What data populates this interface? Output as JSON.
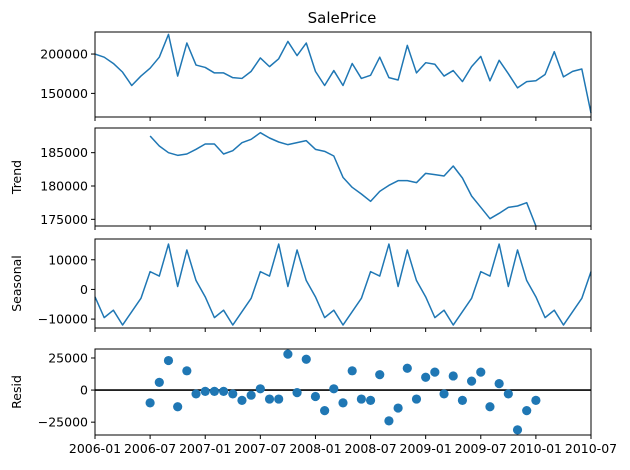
{
  "title": "SalePrice",
  "line_color": "#1f77b4",
  "zero_line_color": "#000000",
  "x_ticks": [
    "2006-01",
    "2006-07",
    "2007-01",
    "2007-07",
    "2008-01",
    "2008-07",
    "2009-01",
    "2009-07",
    "2010-01",
    "2010-07"
  ],
  "chart_data": [
    {
      "type": "line",
      "title": "SalePrice",
      "ylabel": "",
      "x_start": "2006-01",
      "x_end": "2010-07",
      "ylim": [
        120000,
        228000
      ],
      "yticks": [
        150000,
        200000
      ],
      "ytick_labels": [
        "150000",
        "200000"
      ],
      "series": [
        {
          "x": [
            "2006-01",
            "2006-02",
            "2006-03",
            "2006-04",
            "2006-05",
            "2006-06",
            "2006-07",
            "2006-08",
            "2006-09",
            "2006-10",
            "2006-11",
            "2006-12",
            "2007-01",
            "2007-02",
            "2007-03",
            "2007-04",
            "2007-05",
            "2007-06",
            "2007-07",
            "2007-08",
            "2007-09",
            "2007-10",
            "2007-11",
            "2007-12",
            "2008-01",
            "2008-02",
            "2008-03",
            "2008-04",
            "2008-05",
            "2008-06",
            "2008-07",
            "2008-08",
            "2008-09",
            "2008-10",
            "2008-11",
            "2008-12",
            "2009-01",
            "2009-02",
            "2009-03",
            "2009-04",
            "2009-05",
            "2009-06",
            "2009-07",
            "2009-08",
            "2009-09",
            "2009-10",
            "2009-11",
            "2009-12",
            "2010-01",
            "2010-02",
            "2010-03",
            "2010-04",
            "2010-05",
            "2010-06",
            "2010-07"
          ],
          "values": [
            200000,
            196000,
            188000,
            177000,
            160000,
            172000,
            182000,
            196000,
            225000,
            172000,
            214000,
            186000,
            183000,
            176000,
            176000,
            170000,
            169000,
            178000,
            195000,
            184000,
            194000,
            216000,
            198000,
            214000,
            178000,
            160000,
            179000,
            160000,
            188000,
            169000,
            173000,
            196000,
            170000,
            167000,
            211000,
            176000,
            189000,
            187000,
            172000,
            179000,
            165000,
            184000,
            197000,
            166000,
            192000,
            175000,
            157000,
            165000,
            166000,
            174000,
            203000,
            171000,
            178000,
            181000,
            125000
          ]
        }
      ]
    },
    {
      "type": "line",
      "title": "",
      "ylabel": "Trend",
      "x_start": "2006-01",
      "x_end": "2010-07",
      "ylim": [
        174000,
        188700
      ],
      "yticks": [
        175000,
        180000,
        185000
      ],
      "ytick_labels": [
        "175000",
        "180000",
        "185000"
      ],
      "series": [
        {
          "x": [
            "2006-07",
            "2006-08",
            "2006-09",
            "2006-10",
            "2006-11",
            "2006-12",
            "2007-01",
            "2007-02",
            "2007-03",
            "2007-04",
            "2007-05",
            "2007-06",
            "2007-07",
            "2007-08",
            "2007-09",
            "2007-10",
            "2007-11",
            "2007-12",
            "2008-01",
            "2008-02",
            "2008-03",
            "2008-04",
            "2008-05",
            "2008-06",
            "2008-07",
            "2008-08",
            "2008-09",
            "2008-10",
            "2008-11",
            "2008-12",
            "2009-01",
            "2009-02",
            "2009-03",
            "2009-04",
            "2009-05",
            "2009-06",
            "2009-07",
            "2009-08",
            "2009-09",
            "2009-10",
            "2009-11",
            "2009-12",
            "2010-01"
          ],
          "values": [
            187500,
            186000,
            185000,
            184600,
            184800,
            185500,
            186300,
            186300,
            184800,
            185300,
            186500,
            187000,
            188000,
            187200,
            186600,
            186200,
            186500,
            186800,
            185500,
            185200,
            184500,
            181300,
            179800,
            178800,
            177700,
            179200,
            180100,
            180800,
            180800,
            180500,
            181900,
            181700,
            181500,
            183000,
            181200,
            178500,
            176800,
            175100,
            175900,
            176800,
            177000,
            177500,
            174000
          ]
        }
      ]
    },
    {
      "type": "line",
      "title": "",
      "ylabel": "Seasonal",
      "x_start": "2006-01",
      "x_end": "2010-07",
      "ylim": [
        -13000,
        17000
      ],
      "yticks": [
        -10000,
        0,
        10000
      ],
      "ytick_labels": [
        "−10000",
        "0",
        "10000"
      ],
      "series": [
        {
          "x": [
            "2006-01",
            "2006-02",
            "2006-03",
            "2006-04",
            "2006-05",
            "2006-06",
            "2006-07",
            "2006-08",
            "2006-09",
            "2006-10",
            "2006-11",
            "2006-12",
            "2007-01",
            "2007-02",
            "2007-03",
            "2007-04",
            "2007-05",
            "2007-06",
            "2007-07",
            "2007-08",
            "2007-09",
            "2007-10",
            "2007-11",
            "2007-12",
            "2008-01",
            "2008-02",
            "2008-03",
            "2008-04",
            "2008-05",
            "2008-06",
            "2008-07",
            "2008-08",
            "2008-09",
            "2008-10",
            "2008-11",
            "2008-12",
            "2009-01",
            "2009-02",
            "2009-03",
            "2009-04",
            "2009-05",
            "2009-06",
            "2009-07",
            "2009-08",
            "2009-09",
            "2009-10",
            "2009-11",
            "2009-12",
            "2010-01",
            "2010-02",
            "2010-03",
            "2010-04",
            "2010-05",
            "2010-06",
            "2010-07"
          ],
          "values": [
            -2500,
            -9500,
            -7000,
            -12000,
            -7500,
            -3000,
            6000,
            4500,
            15300,
            1000,
            13300,
            3000,
            -2500,
            -9500,
            -7000,
            -12000,
            -7500,
            -3000,
            6000,
            4500,
            15300,
            1000,
            13300,
            3000,
            -2500,
            -9500,
            -7000,
            -12000,
            -7500,
            -3000,
            6000,
            4500,
            15300,
            1000,
            13300,
            3000,
            -2500,
            -9500,
            -7000,
            -12000,
            -7500,
            -3000,
            6000,
            4500,
            15300,
            1000,
            13300,
            3000,
            -2500,
            -9500,
            -7000,
            -12000,
            -7500,
            -3000,
            6000
          ]
        }
      ]
    },
    {
      "type": "scatter",
      "title": "",
      "ylabel": "Resid",
      "x_start": "2006-01",
      "x_end": "2010-07",
      "ylim": [
        -35000,
        32000
      ],
      "yticks": [
        -25000,
        0,
        25000
      ],
      "ytick_labels": [
        "−25000",
        "0",
        "25000"
      ],
      "zero_line": true,
      "series": [
        {
          "x": [
            "2006-07",
            "2006-08",
            "2006-09",
            "2006-10",
            "2006-11",
            "2006-12",
            "2007-01",
            "2007-02",
            "2007-03",
            "2007-04",
            "2007-05",
            "2007-06",
            "2007-07",
            "2007-08",
            "2007-09",
            "2007-10",
            "2007-11",
            "2007-12",
            "2008-01",
            "2008-02",
            "2008-03",
            "2008-04",
            "2008-05",
            "2008-06",
            "2008-07",
            "2008-08",
            "2008-09",
            "2008-10",
            "2008-11",
            "2008-12",
            "2009-01",
            "2009-02",
            "2009-03",
            "2009-04",
            "2009-05",
            "2009-06",
            "2009-07",
            "2009-08",
            "2009-09",
            "2009-10",
            "2009-11",
            "2009-12",
            "2010-01"
          ],
          "values": [
            -10000,
            6000,
            23000,
            -13000,
            15000,
            -3000,
            -1000,
            -1000,
            -1000,
            -3000,
            -8000,
            -4000,
            1000,
            -7000,
            -7000,
            28000,
            -2000,
            24000,
            -5000,
            -16000,
            1000,
            -10000,
            15000,
            -7000,
            -8000,
            12000,
            -24000,
            -14000,
            17000,
            -7000,
            10000,
            14000,
            -3000,
            11000,
            -8000,
            7000,
            14000,
            -13000,
            5000,
            -3000,
            -31000,
            -16000,
            -8000
          ]
        }
      ]
    }
  ]
}
